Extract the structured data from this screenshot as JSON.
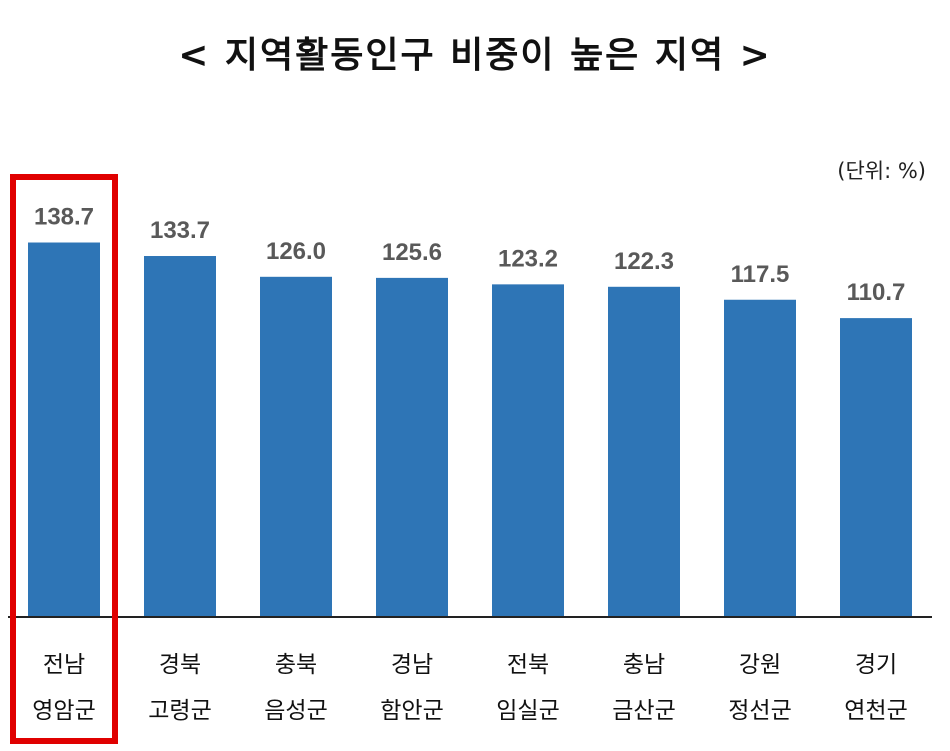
{
  "chart_data": {
    "type": "bar",
    "title": "< 지역활동인구 비중이 높은 지역 >",
    "unit_note": "(단위: %)",
    "categories": [
      [
        "전남",
        "영암군"
      ],
      [
        "경북",
        "고령군"
      ],
      [
        "충북",
        "음성군"
      ],
      [
        "경남",
        "함안군"
      ],
      [
        "전북",
        "임실군"
      ],
      [
        "충남",
        "금산군"
      ],
      [
        "강원",
        "정선군"
      ],
      [
        "경기",
        "연천군"
      ]
    ],
    "values": [
      138.7,
      133.7,
      126.0,
      125.6,
      123.2,
      122.3,
      117.5,
      110.7
    ],
    "value_labels": [
      "138.7",
      "133.7",
      "126.0",
      "125.6",
      "123.2",
      "122.3",
      "117.5",
      "110.7"
    ],
    "ylim": [
      0,
      150
    ],
    "highlight_index": 0,
    "bar_color": "#2E75B6",
    "highlight_color": "#E00000",
    "grid": false,
    "legend": "none"
  }
}
